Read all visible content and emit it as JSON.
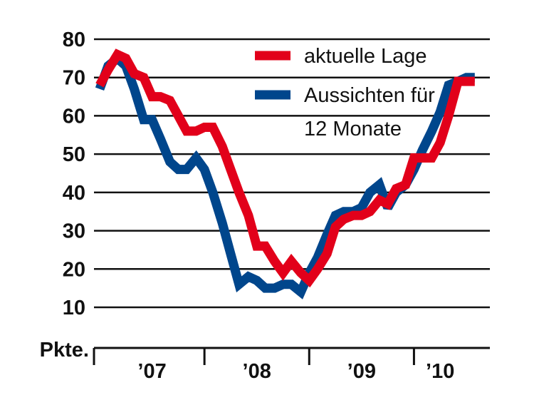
{
  "chart_data": {
    "type": "line",
    "title": "",
    "xlabel": "",
    "ylabel": "Pkte.",
    "ylim": [
      10,
      80
    ],
    "yticks": [
      10,
      20,
      30,
      40,
      50,
      60,
      70,
      80
    ],
    "xlim": [
      2007.0,
      2010.67
    ],
    "xticks": [
      {
        "label": "’07",
        "at": 2007.5
      },
      {
        "label": "’08",
        "at": 2008.5
      },
      {
        "label": "’09",
        "at": 2009.5
      },
      {
        "label": "’10",
        "at": 2010.25
      }
    ],
    "year_separators": [
      2008.0,
      2009.0,
      2010.0
    ],
    "grid": true,
    "legend": "top-right",
    "legend_lines": [
      {
        "series": 0,
        "lines": [
          "aktuelle Lage"
        ]
      },
      {
        "series": 1,
        "lines": [
          "Aussichten für",
          "12 Monate"
        ]
      }
    ],
    "series": [
      {
        "name": "aktuelle Lage",
        "color": "#e2001a",
        "x": [
          2007.0,
          2007.08,
          2007.17,
          2007.25,
          2007.33,
          2007.42,
          2007.5,
          2007.58,
          2007.67,
          2007.75,
          2007.83,
          2007.92,
          2008.0,
          2008.08,
          2008.17,
          2008.25,
          2008.33,
          2008.42,
          2008.5,
          2008.58,
          2008.67,
          2008.75,
          2008.83,
          2008.92,
          2009.0,
          2009.08,
          2009.17,
          2009.25,
          2009.33,
          2009.42,
          2009.5,
          2009.58,
          2009.67,
          2009.75,
          2009.83,
          2009.92,
          2010.0,
          2010.08,
          2010.17,
          2010.25,
          2010.33,
          2010.42,
          2010.5,
          2010.58
        ],
        "values": [
          68,
          72,
          76,
          75,
          71,
          70,
          65,
          65,
          64,
          60,
          56,
          56,
          57,
          57,
          52,
          46,
          40,
          34,
          26,
          26,
          22,
          19,
          22,
          19,
          17,
          20,
          24,
          31,
          33,
          34,
          34,
          35,
          38,
          37,
          41,
          42,
          49,
          49,
          49,
          53,
          60,
          69,
          69,
          69
        ],
        "values_note_omitted": false
      },
      {
        "name": "Aussichten für 12 Monate",
        "color": "#00468c",
        "x": [
          2007.0,
          2007.08,
          2007.17,
          2007.25,
          2007.33,
          2007.42,
          2007.5,
          2007.58,
          2007.67,
          2007.75,
          2007.83,
          2007.92,
          2008.0,
          2008.08,
          2008.17,
          2008.25,
          2008.33,
          2008.42,
          2008.5,
          2008.58,
          2008.67,
          2008.75,
          2008.83,
          2008.92,
          2009.0,
          2009.08,
          2009.17,
          2009.25,
          2009.33,
          2009.42,
          2009.5,
          2009.58,
          2009.67,
          2009.75,
          2009.83,
          2009.92,
          2010.0,
          2010.08,
          2010.17,
          2010.25,
          2010.33,
          2010.42,
          2010.5,
          2010.58
        ],
        "values": [
          67,
          73,
          75,
          73,
          67,
          59,
          59,
          54,
          48,
          46,
          46,
          49,
          46,
          40,
          32,
          24,
          16,
          18,
          17,
          15,
          15,
          16,
          16,
          14,
          19,
          23,
          29,
          34,
          35,
          35,
          36,
          40,
          42,
          36,
          40,
          42,
          46,
          51,
          56,
          61,
          68,
          69,
          70,
          70
        ]
      }
    ]
  }
}
